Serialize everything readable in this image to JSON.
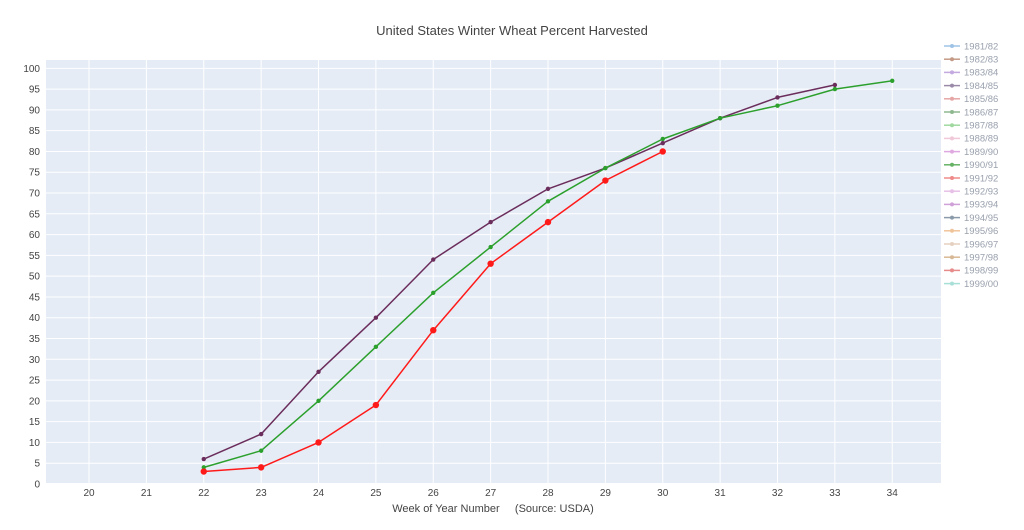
{
  "chart_data": {
    "type": "line",
    "title": "United States Winter Wheat Percent Harvested",
    "xlabel": "Week of Year Number     (Source: USDA)",
    "ylabel": "",
    "xlim": [
      19.25,
      34.85
    ],
    "ylim": [
      0,
      102
    ],
    "x_ticks": [
      20,
      21,
      22,
      23,
      24,
      25,
      26,
      27,
      28,
      29,
      30,
      31,
      32,
      33,
      34
    ],
    "y_ticks": [
      0,
      5,
      10,
      15,
      20,
      25,
      30,
      35,
      40,
      45,
      50,
      55,
      60,
      65,
      70,
      75,
      80,
      85,
      90,
      95,
      100
    ],
    "grid": true,
    "plot_background": "#e5ecf6",
    "legend_position": "right",
    "legend": [
      {
        "name": "1981/82",
        "color": "#9ec3e6"
      },
      {
        "name": "1982/83",
        "color": "#c49a86"
      },
      {
        "name": "1983/84",
        "color": "#c4a8e0"
      },
      {
        "name": "1984/85",
        "color": "#9a8aa8"
      },
      {
        "name": "1985/86",
        "color": "#e6a6a6"
      },
      {
        "name": "1986/87",
        "color": "#8fb88f"
      },
      {
        "name": "1987/88",
        "color": "#9fd99f"
      },
      {
        "name": "1988/89",
        "color": "#f0c8d8"
      },
      {
        "name": "1989/90",
        "color": "#e0a8e0"
      },
      {
        "name": "1990/91",
        "color": "#66b266"
      },
      {
        "name": "1991/92",
        "color": "#f08a8a"
      },
      {
        "name": "1992/93",
        "color": "#e6c0e6"
      },
      {
        "name": "1993/94",
        "color": "#d0a0d8"
      },
      {
        "name": "1994/95",
        "color": "#8a9aa8"
      },
      {
        "name": "1995/96",
        "color": "#f0c49a"
      },
      {
        "name": "1996/97",
        "color": "#e6d0c0"
      },
      {
        "name": "1997/98",
        "color": "#d8b894"
      },
      {
        "name": "1998/99",
        "color": "#e68a8a"
      },
      {
        "name": "1999/00",
        "color": "#a8e0d8"
      }
    ],
    "series": [
      {
        "color": "#6b2d5c",
        "marker_size": 2.2,
        "x": [
          22,
          23,
          24,
          25,
          26,
          27,
          28,
          29,
          30,
          31,
          32,
          33
        ],
        "y": [
          6,
          12,
          27,
          40,
          54,
          63,
          71,
          76,
          82,
          88,
          93,
          96
        ]
      },
      {
        "color": "#2ca02c",
        "marker_size": 2.2,
        "x": [
          22,
          23,
          24,
          25,
          26,
          27,
          28,
          29,
          30,
          31,
          32,
          33,
          34
        ],
        "y": [
          4,
          8,
          20,
          33,
          46,
          57,
          68,
          76,
          83,
          88,
          91,
          95,
          97
        ]
      },
      {
        "color": "#ff1a1a",
        "marker_size": 3.2,
        "x": [
          22,
          23,
          24,
          25,
          26,
          27,
          28,
          29,
          30
        ],
        "y": [
          3,
          4,
          10,
          19,
          37,
          53,
          63,
          73,
          80
        ]
      }
    ]
  }
}
